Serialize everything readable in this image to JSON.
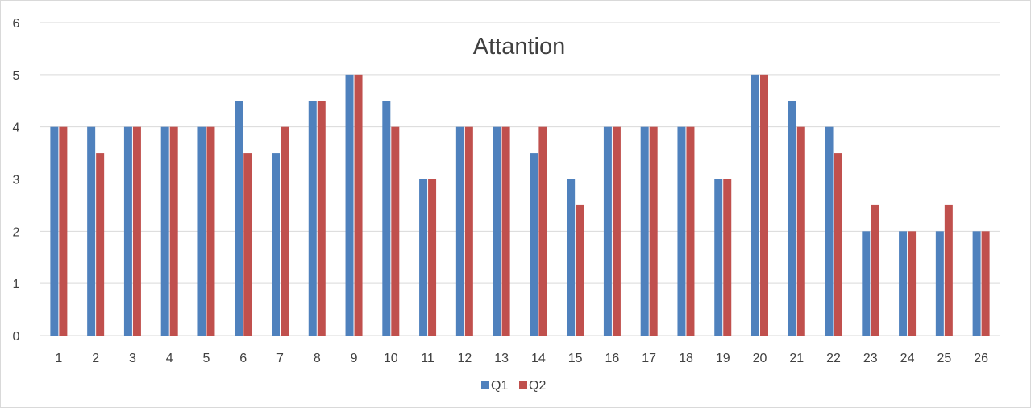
{
  "chart_data": {
    "type": "bar",
    "title": "Attantion",
    "xlabel": "",
    "ylabel": "",
    "categories": [
      "1",
      "2",
      "3",
      "4",
      "5",
      "6",
      "7",
      "8",
      "9",
      "10",
      "11",
      "12",
      "13",
      "14",
      "15",
      "16",
      "17",
      "18",
      "19",
      "20",
      "21",
      "22",
      "23",
      "24",
      "25",
      "26"
    ],
    "ylim": [
      0,
      6
    ],
    "yticks": [
      "0",
      "1",
      "2",
      "3",
      "4",
      "5",
      "6"
    ],
    "grid": true,
    "legend_position": "bottom",
    "series": [
      {
        "name": "Q1",
        "color": "#4f81bd",
        "values": [
          4,
          4,
          4,
          4,
          4,
          4.5,
          3.5,
          4.5,
          5,
          4.5,
          3,
          4,
          4,
          3.5,
          3,
          4,
          4,
          4,
          3,
          5,
          4.5,
          4,
          2,
          2,
          2,
          2
        ]
      },
      {
        "name": "Q2",
        "color": "#c0504d",
        "values": [
          4,
          3.5,
          4,
          4,
          4,
          3.5,
          4,
          4.5,
          5,
          4,
          3,
          4,
          4,
          4,
          2.5,
          4,
          4,
          4,
          3,
          5,
          4,
          3.5,
          2.5,
          2,
          2.5,
          2
        ]
      }
    ]
  }
}
